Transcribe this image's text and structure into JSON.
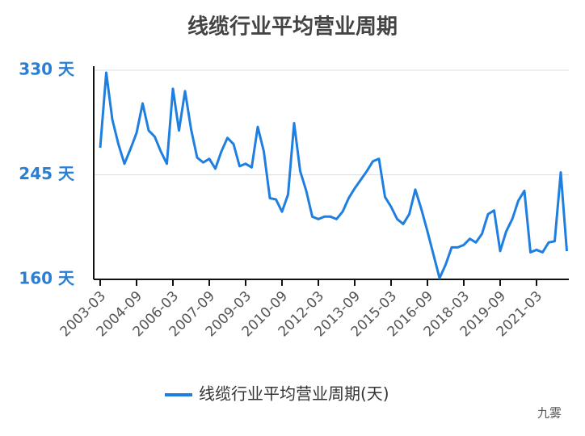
{
  "chart_data": {
    "type": "line",
    "title": "线缆行业平均营业周期",
    "categories": [
      "2003-03",
      null,
      null,
      null,
      null,
      null,
      "2004-09",
      null,
      null,
      null,
      null,
      null,
      "2006-03",
      null,
      null,
      null,
      null,
      null,
      "2007-09",
      null,
      null,
      null,
      null,
      null,
      "2009-03",
      null,
      null,
      null,
      null,
      null,
      "2010-09",
      null,
      null,
      null,
      null,
      null,
      "2012-03",
      null,
      null,
      null,
      null,
      null,
      "2013-09",
      null,
      null,
      null,
      null,
      null,
      "2015-03",
      null,
      null,
      null,
      null,
      null,
      "2016-09",
      null,
      null,
      null,
      null,
      null,
      "2018-03",
      null,
      null,
      null,
      null,
      null,
      "2019-09",
      null,
      null,
      null,
      null,
      null,
      "2021-03",
      null,
      null,
      null,
      null,
      null
    ],
    "series": [
      {
        "name": "线缆行业平均营业周期(天)",
        "color": "#1f7fe0",
        "values": [
          267,
          328,
          290,
          270,
          254,
          266,
          279,
          303,
          281,
          276,
          264,
          254,
          315,
          281,
          313,
          282,
          259,
          255,
          258,
          250,
          264,
          275,
          270,
          252,
          254,
          251,
          284,
          264,
          226,
          225,
          215,
          229,
          287,
          248,
          232,
          211,
          209,
          211,
          211,
          209,
          215,
          226,
          234,
          241,
          248,
          256,
          258,
          227,
          219,
          209,
          205,
          213,
          233,
          217,
          199,
          180,
          161,
          172,
          186,
          186,
          188,
          193,
          190,
          197,
          213,
          216,
          183,
          199,
          209,
          224,
          232,
          182,
          184,
          182,
          190,
          191,
          247,
          183
        ]
      }
    ],
    "ylim": [
      160,
      330
    ],
    "yticks": [
      {
        "value": 160,
        "label": "160 天"
      },
      {
        "value": 245,
        "label": "245 天"
      },
      {
        "value": 330,
        "label": "330 天"
      }
    ],
    "grid": true,
    "legend": "bottom",
    "watermark": "九雾"
  }
}
